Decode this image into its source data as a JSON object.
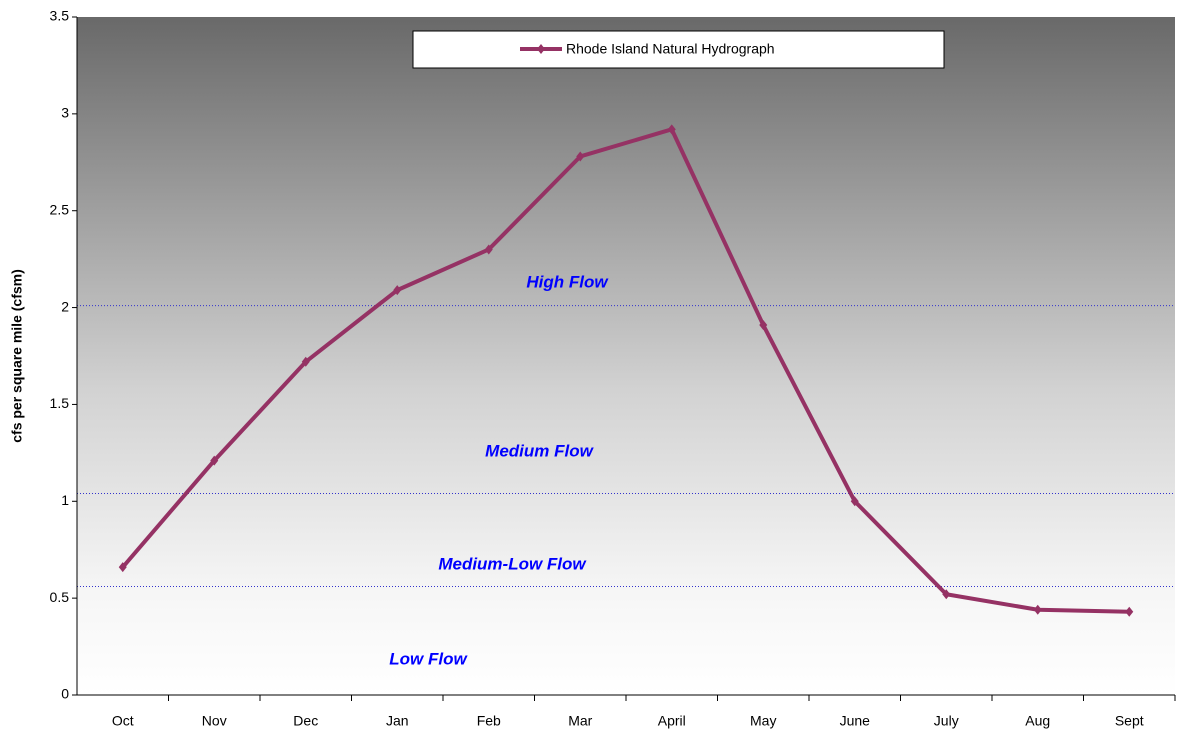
{
  "chart_data": {
    "type": "line",
    "y_label": "cfs per square mile (cfsm)",
    "categories": [
      "Oct",
      "Nov",
      "Dec",
      "Jan",
      "Feb",
      "Mar",
      "April",
      "May",
      "June",
      "July",
      "Aug",
      "Sept"
    ],
    "series": [
      {
        "name": "Rhode Island Natural Hydrograph",
        "color": "#953264",
        "values": [
          0.66,
          1.21,
          1.72,
          2.09,
          2.3,
          2.78,
          2.92,
          1.91,
          1.0,
          0.52,
          0.44,
          0.43
        ]
      }
    ],
    "reference_lines": [
      2.01,
      1.04,
      0.56
    ],
    "annotations": [
      "High Flow",
      "Medium Flow",
      "Medium-Low Flow",
      "Low Flow"
    ],
    "ylim": [
      0,
      3.5
    ],
    "yticks": [
      0,
      0.5,
      1,
      1.5,
      2,
      2.5,
      3,
      3.5
    ],
    "legend": "top"
  }
}
